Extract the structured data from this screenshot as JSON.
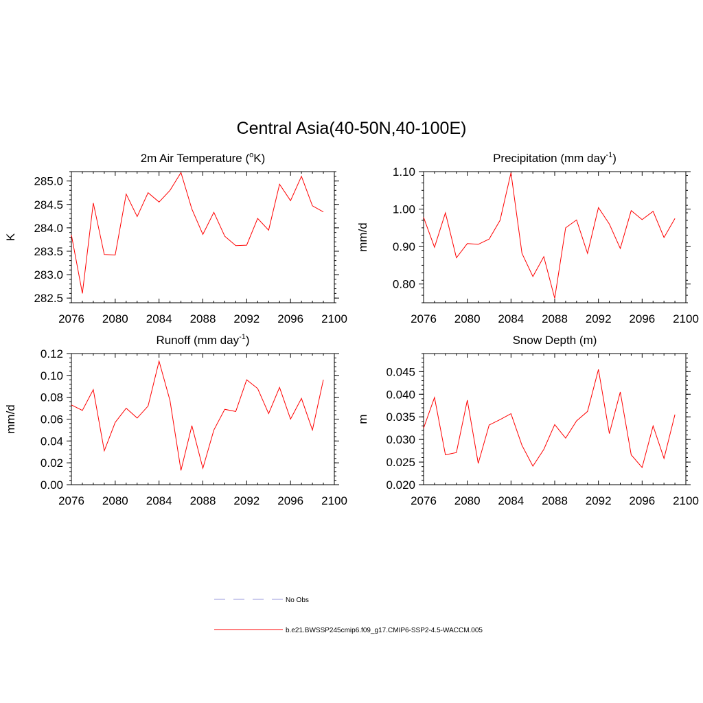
{
  "title": "Central Asia(40-50N,40-100E)",
  "chart_data": [
    {
      "type": "line",
      "title": {
        "main": "2m Air Temperature (",
        "sup1": "o",
        "mid": "K)",
        "sup2": "",
        "tail": ""
      },
      "ylabel": "K",
      "xlim": [
        2076,
        2100
      ],
      "ylim": [
        282.4,
        285.2
      ],
      "xticks": [
        2076,
        2080,
        2084,
        2088,
        2092,
        2096,
        2100
      ],
      "yticks": [
        282.5,
        283.0,
        283.5,
        284.0,
        284.5,
        285.0
      ],
      "ytick_labels": [
        "282.5",
        "283.0",
        "283.5",
        "284.0",
        "284.5",
        "285.0"
      ],
      "ytick_minor_step": 0.1,
      "x": [
        2076,
        2077,
        2078,
        2079,
        2080,
        2081,
        2082,
        2083,
        2084,
        2085,
        2086,
        2087,
        2088,
        2089,
        2090,
        2091,
        2092,
        2093,
        2094,
        2095,
        2096,
        2097,
        2098,
        2099
      ],
      "series": [
        {
          "color": "#ff0000",
          "values": [
            283.85,
            282.6,
            284.53,
            283.43,
            283.42,
            284.72,
            284.24,
            284.75,
            284.55,
            284.8,
            285.18,
            284.4,
            283.86,
            284.33,
            283.82,
            283.62,
            283.63,
            284.2,
            283.95,
            284.93,
            284.58,
            285.1,
            284.47,
            284.34
          ]
        }
      ]
    },
    {
      "type": "line",
      "title": {
        "main": "Precipitation (mm day",
        "sup1": "-1",
        "mid": ")",
        "sup2": "",
        "tail": ""
      },
      "ylabel": "mm/d",
      "xlim": [
        2076,
        2100
      ],
      "ylim": [
        0.75,
        1.1
      ],
      "xticks": [
        2076,
        2080,
        2084,
        2088,
        2092,
        2096,
        2100
      ],
      "yticks": [
        0.8,
        0.9,
        1.0,
        1.1
      ],
      "ytick_labels": [
        "0.80",
        "0.90",
        "1.00",
        "1.10"
      ],
      "ytick_minor_step": 0.02,
      "x": [
        2076,
        2077,
        2078,
        2079,
        2080,
        2081,
        2082,
        2083,
        2084,
        2085,
        2086,
        2087,
        2088,
        2089,
        2090,
        2091,
        2092,
        2093,
        2094,
        2095,
        2096,
        2097,
        2098,
        2099
      ],
      "series": [
        {
          "color": "#ff0000",
          "values": [
            0.978,
            0.898,
            0.99,
            0.87,
            0.908,
            0.906,
            0.92,
            0.97,
            1.097,
            0.882,
            0.82,
            0.873,
            0.762,
            0.95,
            0.971,
            0.882,
            1.004,
            0.96,
            0.895,
            0.996,
            0.972,
            0.994,
            0.924,
            0.975
          ]
        }
      ]
    },
    {
      "type": "line",
      "title": {
        "main": "Runoff (mm day",
        "sup1": "-1",
        "mid": ")",
        "sup2": "",
        "tail": ""
      },
      "ylabel": "mm/d",
      "xlim": [
        2076,
        2100
      ],
      "ylim": [
        0.0,
        0.12
      ],
      "xticks": [
        2076,
        2080,
        2084,
        2088,
        2092,
        2096,
        2100
      ],
      "yticks": [
        0.0,
        0.02,
        0.04,
        0.06,
        0.08,
        0.1,
        0.12
      ],
      "ytick_labels": [
        "0.00",
        "0.02",
        "0.04",
        "0.06",
        "0.08",
        "0.10",
        "0.12"
      ],
      "ytick_minor_step": 0.004,
      "x": [
        2076,
        2077,
        2078,
        2079,
        2080,
        2081,
        2082,
        2083,
        2084,
        2085,
        2086,
        2087,
        2088,
        2089,
        2090,
        2091,
        2092,
        2093,
        2094,
        2095,
        2096,
        2097,
        2098,
        2099
      ],
      "series": [
        {
          "color": "#ff0000",
          "values": [
            0.073,
            0.068,
            0.087,
            0.031,
            0.057,
            0.07,
            0.061,
            0.072,
            0.113,
            0.077,
            0.013,
            0.054,
            0.015,
            0.05,
            0.069,
            0.067,
            0.096,
            0.088,
            0.065,
            0.089,
            0.06,
            0.079,
            0.05,
            0.096
          ]
        }
      ]
    },
    {
      "type": "line",
      "title": {
        "main": "Snow Depth (m)",
        "sup1": "",
        "mid": "",
        "sup2": "",
        "tail": ""
      },
      "ylabel": "m",
      "xlim": [
        2076,
        2100
      ],
      "ylim": [
        0.02,
        0.049
      ],
      "xticks": [
        2076,
        2080,
        2084,
        2088,
        2092,
        2096,
        2100
      ],
      "yticks": [
        0.02,
        0.025,
        0.03,
        0.035,
        0.04,
        0.045
      ],
      "ytick_labels": [
        "0.020",
        "0.025",
        "0.030",
        "0.035",
        "0.040",
        "0.045"
      ],
      "ytick_minor_step": 0.001,
      "x": [
        2076,
        2077,
        2078,
        2079,
        2080,
        2081,
        2082,
        2083,
        2084,
        2085,
        2086,
        2087,
        2088,
        2089,
        2090,
        2091,
        2092,
        2093,
        2094,
        2095,
        2096,
        2097,
        2098,
        2099
      ],
      "series": [
        {
          "color": "#ff0000",
          "values": [
            0.0325,
            0.0393,
            0.0266,
            0.0271,
            0.0387,
            0.0247,
            0.0332,
            0.0344,
            0.0357,
            0.0287,
            0.0241,
            0.0278,
            0.0333,
            0.0303,
            0.0341,
            0.0362,
            0.0455,
            0.0313,
            0.0405,
            0.0266,
            0.0238,
            0.033,
            0.0258,
            0.0355
          ]
        }
      ]
    }
  ],
  "legend": [
    {
      "label": "No Obs",
      "color": "#9999dd",
      "dash": "16,12"
    },
    {
      "label": "b.e21.BWSSP245cmip6.f09_g17.CMIP6-SSP2-4.5-WACCM.005",
      "color": "#ff0000",
      "dash": ""
    }
  ]
}
